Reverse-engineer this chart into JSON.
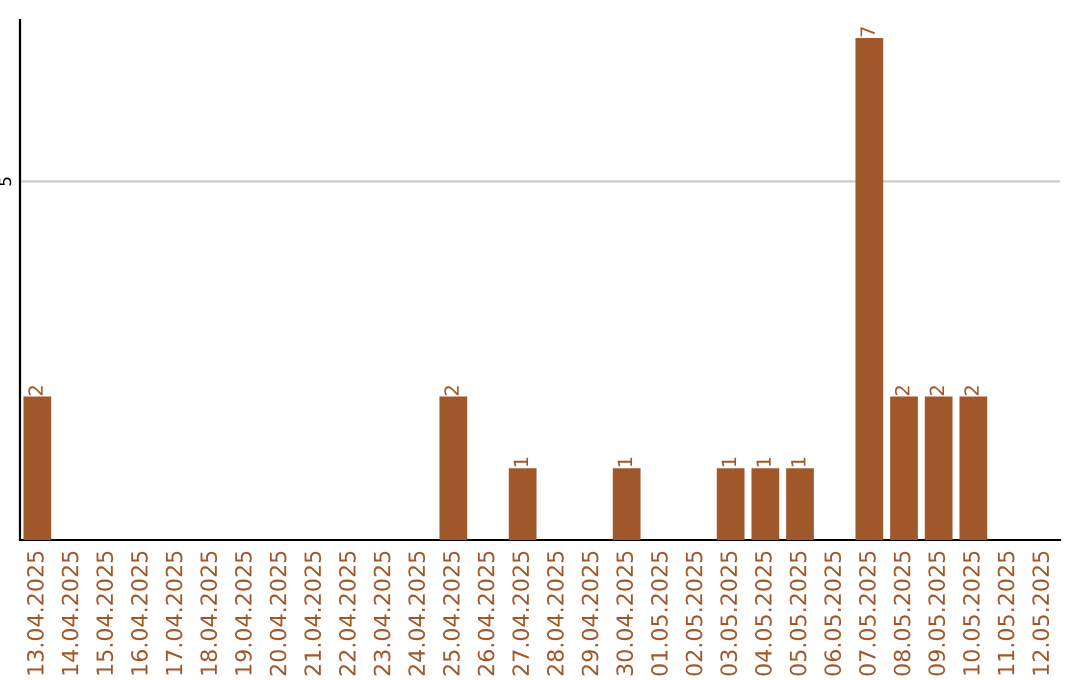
{
  "chart_data": {
    "type": "bar",
    "categories": [
      "13.04.2025",
      "14.04.2025",
      "15.04.2025",
      "16.04.2025",
      "17.04.2025",
      "18.04.2025",
      "19.04.2025",
      "20.04.2025",
      "21.04.2025",
      "22.04.2025",
      "23.04.2025",
      "24.04.2025",
      "25.04.2025",
      "26.04.2025",
      "27.04.2025",
      "28.04.2025",
      "29.04.2025",
      "30.04.2025",
      "01.05.2025",
      "02.05.2025",
      "03.05.2025",
      "04.05.2025",
      "05.05.2025",
      "06.05.2025",
      "07.05.2025",
      "08.05.2025",
      "09.05.2025",
      "10.05.2025",
      "11.05.2025",
      "12.05.2025"
    ],
    "values": [
      2,
      0,
      0,
      0,
      0,
      0,
      0,
      0,
      0,
      0,
      0,
      0,
      2,
      0,
      1,
      0,
      0,
      1,
      0,
      0,
      1,
      1,
      1,
      0,
      7,
      2,
      2,
      2,
      0,
      0
    ],
    "value_labels": [
      "2",
      null,
      null,
      null,
      null,
      null,
      null,
      null,
      null,
      null,
      null,
      null,
      "2",
      null,
      "1",
      null,
      null,
      "1",
      null,
      null,
      "1",
      "1",
      "1",
      null,
      "7",
      "2",
      "2",
      "2",
      null,
      null
    ],
    "color": "#a0572a",
    "ylim": [
      0,
      7.25
    ],
    "yticks": [
      5
    ],
    "grid": "y",
    "legend": false
  }
}
